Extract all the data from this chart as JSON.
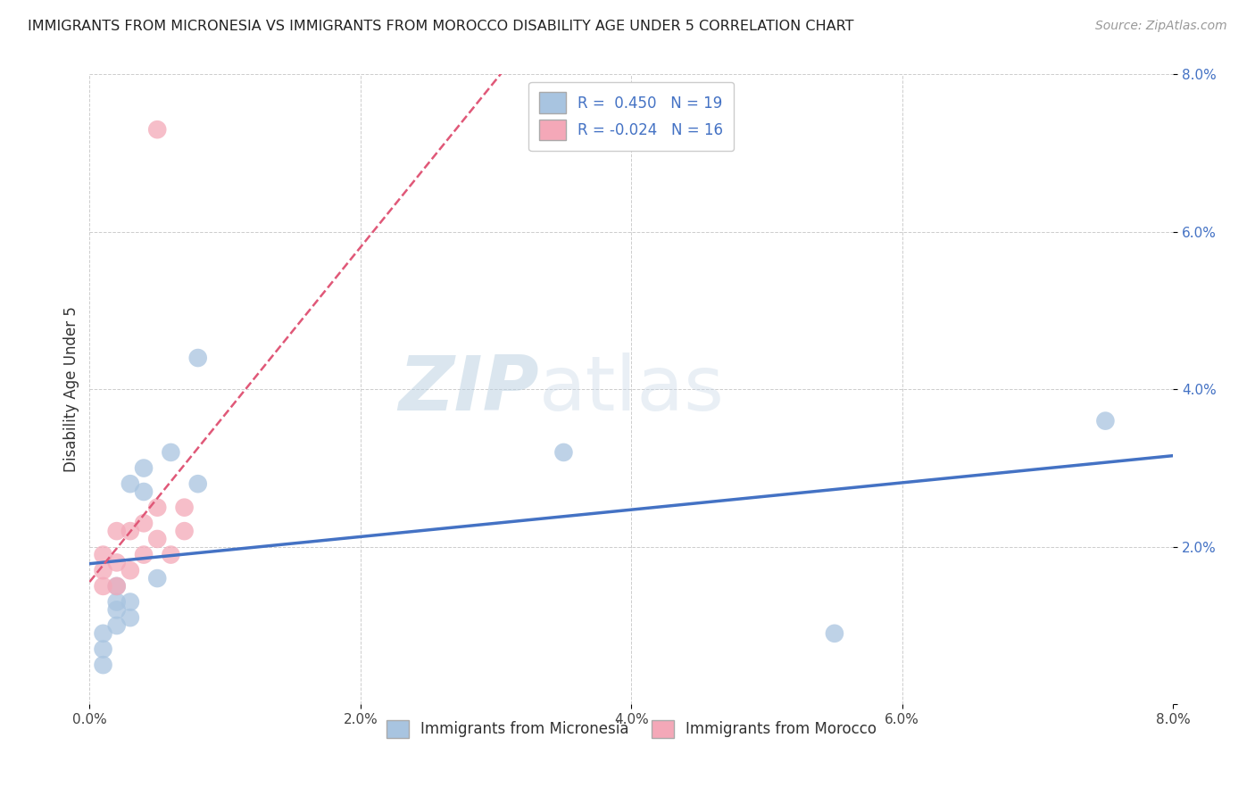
{
  "title": "IMMIGRANTS FROM MICRONESIA VS IMMIGRANTS FROM MOROCCO DISABILITY AGE UNDER 5 CORRELATION CHART",
  "source": "Source: ZipAtlas.com",
  "ylabel": "Disability Age Under 5",
  "xlim": [
    0.0,
    0.08
  ],
  "ylim": [
    0.0,
    0.08
  ],
  "xtick_labels": [
    "0.0%",
    "2.0%",
    "4.0%",
    "6.0%",
    "8.0%"
  ],
  "xtick_vals": [
    0.0,
    0.02,
    0.04,
    0.06,
    0.08
  ],
  "ytick_labels": [
    "",
    "2.0%",
    "4.0%",
    "6.0%",
    "8.0%"
  ],
  "ytick_vals": [
    0.0,
    0.02,
    0.04,
    0.06,
    0.08
  ],
  "legend_label1": "Immigrants from Micronesia",
  "legend_label2": "Immigrants from Morocco",
  "R1": 0.45,
  "N1": 19,
  "R2": -0.024,
  "N2": 16,
  "color1": "#a8c4e0",
  "color2": "#f4a8b8",
  "line_color1": "#4472c4",
  "line_color2": "#e05878",
  "watermark_zip": "ZIP",
  "watermark_atlas": "atlas",
  "micronesia_x": [
    0.001,
    0.001,
    0.001,
    0.002,
    0.002,
    0.002,
    0.002,
    0.003,
    0.003,
    0.003,
    0.004,
    0.004,
    0.005,
    0.006,
    0.008,
    0.008,
    0.035,
    0.055,
    0.075
  ],
  "micronesia_y": [
    0.005,
    0.007,
    0.009,
    0.01,
    0.012,
    0.013,
    0.015,
    0.011,
    0.013,
    0.028,
    0.027,
    0.03,
    0.016,
    0.032,
    0.044,
    0.028,
    0.032,
    0.009,
    0.036
  ],
  "morocco_x": [
    0.001,
    0.001,
    0.001,
    0.002,
    0.002,
    0.002,
    0.003,
    0.003,
    0.004,
    0.004,
    0.005,
    0.005,
    0.006,
    0.007,
    0.007,
    0.005
  ],
  "morocco_y": [
    0.015,
    0.017,
    0.019,
    0.015,
    0.018,
    0.022,
    0.017,
    0.022,
    0.019,
    0.023,
    0.021,
    0.025,
    0.019,
    0.022,
    0.025,
    0.073
  ]
}
